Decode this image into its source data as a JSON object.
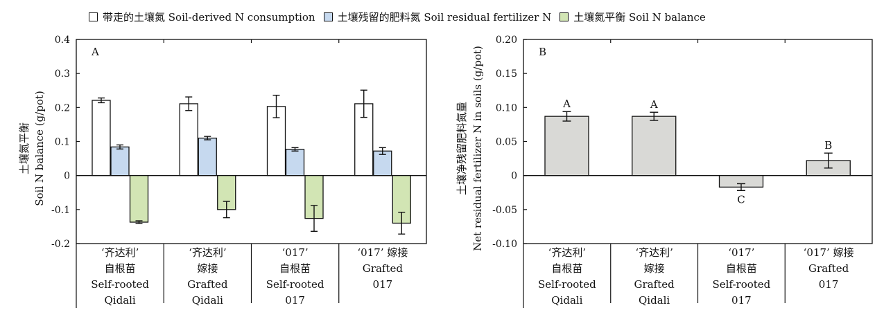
{
  "legend": {
    "items": [
      {
        "label": "带走的土壤氮 Soil-derived N consumption",
        "color": "#ffffff"
      },
      {
        "label": "土壤残留的肥料氮 Soil residual fertilizer N",
        "color": "#c6d9ef"
      },
      {
        "label": "土壤氮平衡 Soil N balance",
        "color": "#d2e5b4"
      }
    ]
  },
  "chart_data": [
    {
      "type": "bar",
      "panel_label": "A",
      "ylabel_cn": "土壤氮平衡",
      "ylabel_en": "Soil N balance (g/pot)",
      "ylim": [
        -0.2,
        0.4
      ],
      "yticks": [
        "0.4",
        "0.3",
        "0.2",
        "0.1",
        "0",
        "-0.1",
        "-0.2"
      ],
      "ytick_values": [
        0.4,
        0.3,
        0.2,
        0.1,
        0,
        -0.1,
        -0.2
      ],
      "categories": [
        [
          "‘齐达利’",
          "自根苗",
          "Self-rooted",
          "Qidali"
        ],
        [
          "‘齐达利’",
          "嫁接",
          "Grafted",
          "Qidali"
        ],
        [
          "‘017’",
          "自根苗",
          "Self-rooted",
          "017"
        ],
        [
          "‘017’ 嫁接",
          "Grafted",
          "017"
        ]
      ],
      "series": [
        {
          "name": "带走的土壤氮 Soil-derived N consumption",
          "color": "#ffffff",
          "values": [
            0.221,
            0.211,
            0.203,
            0.211
          ],
          "errors": [
            0.007,
            0.02,
            0.033,
            0.04
          ]
        },
        {
          "name": "土壤残留的肥料氮 Soil residual fertilizer N",
          "color": "#c6d9ef",
          "values": [
            0.084,
            0.11,
            0.077,
            0.072
          ],
          "errors": [
            0.006,
            0.005,
            0.005,
            0.01
          ]
        },
        {
          "name": "土壤氮平衡 Soil N balance",
          "color": "#d2e5b4",
          "values": [
            -0.137,
            -0.1,
            -0.126,
            -0.14
          ],
          "errors": [
            0.004,
            0.024,
            0.038,
            0.032
          ]
        }
      ]
    },
    {
      "type": "bar",
      "panel_label": "B",
      "ylabel_cn": "土壤净残留肥料氮量",
      "ylabel_en": "Net residual fertilizer N in soils (g/pot)",
      "ylim": [
        -0.1,
        0.2
      ],
      "yticks": [
        "0.20",
        "0.15",
        "0.10",
        "0.05",
        "0",
        "-0.05",
        "-0.10"
      ],
      "ytick_values": [
        0.2,
        0.15,
        0.1,
        0.05,
        0,
        -0.05,
        -0.1
      ],
      "categories": [
        [
          "‘齐达利’",
          "自根苗",
          "Self-rooted",
          "Qidali"
        ],
        [
          "‘齐达利’",
          "嫁接",
          "Grafted",
          "Qidali"
        ],
        [
          "‘017’",
          "自根苗",
          "Self-rooted",
          "017"
        ],
        [
          "‘017’ 嫁接",
          "Grafted",
          "017"
        ]
      ],
      "series": [
        {
          "color": "#d9d9d6",
          "values": [
            0.087,
            0.087,
            -0.017,
            0.022
          ],
          "errors": [
            0.007,
            0.006,
            0.005,
            0.011
          ],
          "letters": [
            "A",
            "A",
            "C",
            "B"
          ]
        }
      ]
    }
  ]
}
